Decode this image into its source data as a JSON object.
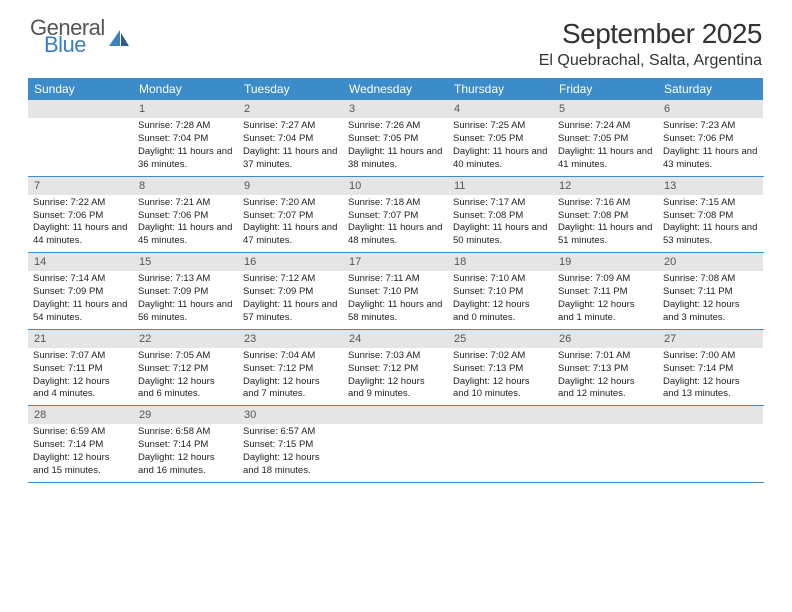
{
  "logo": {
    "line1": "General",
    "line2": "Blue"
  },
  "header": {
    "month_title": "September 2025",
    "location": "El Quebrachal, Salta, Argentina"
  },
  "day_names": [
    "Sunday",
    "Monday",
    "Tuesday",
    "Wednesday",
    "Thursday",
    "Friday",
    "Saturday"
  ],
  "colors": {
    "header_bg": "#3b8cc9",
    "header_text": "#ffffff",
    "daynum_bg": "#e5e5e5",
    "border": "#3b8cc9",
    "logo_blue": "#3b7fc4",
    "logo_gray": "#555555"
  },
  "weeks": [
    [
      null,
      {
        "n": "1",
        "sunrise": "Sunrise: 7:28 AM",
        "sunset": "Sunset: 7:04 PM",
        "daylight": "Daylight: 11 hours and 36 minutes."
      },
      {
        "n": "2",
        "sunrise": "Sunrise: 7:27 AM",
        "sunset": "Sunset: 7:04 PM",
        "daylight": "Daylight: 11 hours and 37 minutes."
      },
      {
        "n": "3",
        "sunrise": "Sunrise: 7:26 AM",
        "sunset": "Sunset: 7:05 PM",
        "daylight": "Daylight: 11 hours and 38 minutes."
      },
      {
        "n": "4",
        "sunrise": "Sunrise: 7:25 AM",
        "sunset": "Sunset: 7:05 PM",
        "daylight": "Daylight: 11 hours and 40 minutes."
      },
      {
        "n": "5",
        "sunrise": "Sunrise: 7:24 AM",
        "sunset": "Sunset: 7:05 PM",
        "daylight": "Daylight: 11 hours and 41 minutes."
      },
      {
        "n": "6",
        "sunrise": "Sunrise: 7:23 AM",
        "sunset": "Sunset: 7:06 PM",
        "daylight": "Daylight: 11 hours and 43 minutes."
      }
    ],
    [
      {
        "n": "7",
        "sunrise": "Sunrise: 7:22 AM",
        "sunset": "Sunset: 7:06 PM",
        "daylight": "Daylight: 11 hours and 44 minutes."
      },
      {
        "n": "8",
        "sunrise": "Sunrise: 7:21 AM",
        "sunset": "Sunset: 7:06 PM",
        "daylight": "Daylight: 11 hours and 45 minutes."
      },
      {
        "n": "9",
        "sunrise": "Sunrise: 7:20 AM",
        "sunset": "Sunset: 7:07 PM",
        "daylight": "Daylight: 11 hours and 47 minutes."
      },
      {
        "n": "10",
        "sunrise": "Sunrise: 7:18 AM",
        "sunset": "Sunset: 7:07 PM",
        "daylight": "Daylight: 11 hours and 48 minutes."
      },
      {
        "n": "11",
        "sunrise": "Sunrise: 7:17 AM",
        "sunset": "Sunset: 7:08 PM",
        "daylight": "Daylight: 11 hours and 50 minutes."
      },
      {
        "n": "12",
        "sunrise": "Sunrise: 7:16 AM",
        "sunset": "Sunset: 7:08 PM",
        "daylight": "Daylight: 11 hours and 51 minutes."
      },
      {
        "n": "13",
        "sunrise": "Sunrise: 7:15 AM",
        "sunset": "Sunset: 7:08 PM",
        "daylight": "Daylight: 11 hours and 53 minutes."
      }
    ],
    [
      {
        "n": "14",
        "sunrise": "Sunrise: 7:14 AM",
        "sunset": "Sunset: 7:09 PM",
        "daylight": "Daylight: 11 hours and 54 minutes."
      },
      {
        "n": "15",
        "sunrise": "Sunrise: 7:13 AM",
        "sunset": "Sunset: 7:09 PM",
        "daylight": "Daylight: 11 hours and 56 minutes."
      },
      {
        "n": "16",
        "sunrise": "Sunrise: 7:12 AM",
        "sunset": "Sunset: 7:09 PM",
        "daylight": "Daylight: 11 hours and 57 minutes."
      },
      {
        "n": "17",
        "sunrise": "Sunrise: 7:11 AM",
        "sunset": "Sunset: 7:10 PM",
        "daylight": "Daylight: 11 hours and 58 minutes."
      },
      {
        "n": "18",
        "sunrise": "Sunrise: 7:10 AM",
        "sunset": "Sunset: 7:10 PM",
        "daylight": "Daylight: 12 hours and 0 minutes."
      },
      {
        "n": "19",
        "sunrise": "Sunrise: 7:09 AM",
        "sunset": "Sunset: 7:11 PM",
        "daylight": "Daylight: 12 hours and 1 minute."
      },
      {
        "n": "20",
        "sunrise": "Sunrise: 7:08 AM",
        "sunset": "Sunset: 7:11 PM",
        "daylight": "Daylight: 12 hours and 3 minutes."
      }
    ],
    [
      {
        "n": "21",
        "sunrise": "Sunrise: 7:07 AM",
        "sunset": "Sunset: 7:11 PM",
        "daylight": "Daylight: 12 hours and 4 minutes."
      },
      {
        "n": "22",
        "sunrise": "Sunrise: 7:05 AM",
        "sunset": "Sunset: 7:12 PM",
        "daylight": "Daylight: 12 hours and 6 minutes."
      },
      {
        "n": "23",
        "sunrise": "Sunrise: 7:04 AM",
        "sunset": "Sunset: 7:12 PM",
        "daylight": "Daylight: 12 hours and 7 minutes."
      },
      {
        "n": "24",
        "sunrise": "Sunrise: 7:03 AM",
        "sunset": "Sunset: 7:12 PM",
        "daylight": "Daylight: 12 hours and 9 minutes."
      },
      {
        "n": "25",
        "sunrise": "Sunrise: 7:02 AM",
        "sunset": "Sunset: 7:13 PM",
        "daylight": "Daylight: 12 hours and 10 minutes."
      },
      {
        "n": "26",
        "sunrise": "Sunrise: 7:01 AM",
        "sunset": "Sunset: 7:13 PM",
        "daylight": "Daylight: 12 hours and 12 minutes."
      },
      {
        "n": "27",
        "sunrise": "Sunrise: 7:00 AM",
        "sunset": "Sunset: 7:14 PM",
        "daylight": "Daylight: 12 hours and 13 minutes."
      }
    ],
    [
      {
        "n": "28",
        "sunrise": "Sunrise: 6:59 AM",
        "sunset": "Sunset: 7:14 PM",
        "daylight": "Daylight: 12 hours and 15 minutes."
      },
      {
        "n": "29",
        "sunrise": "Sunrise: 6:58 AM",
        "sunset": "Sunset: 7:14 PM",
        "daylight": "Daylight: 12 hours and 16 minutes."
      },
      {
        "n": "30",
        "sunrise": "Sunrise: 6:57 AM",
        "sunset": "Sunset: 7:15 PM",
        "daylight": "Daylight: 12 hours and 18 minutes."
      },
      null,
      null,
      null,
      null
    ]
  ]
}
